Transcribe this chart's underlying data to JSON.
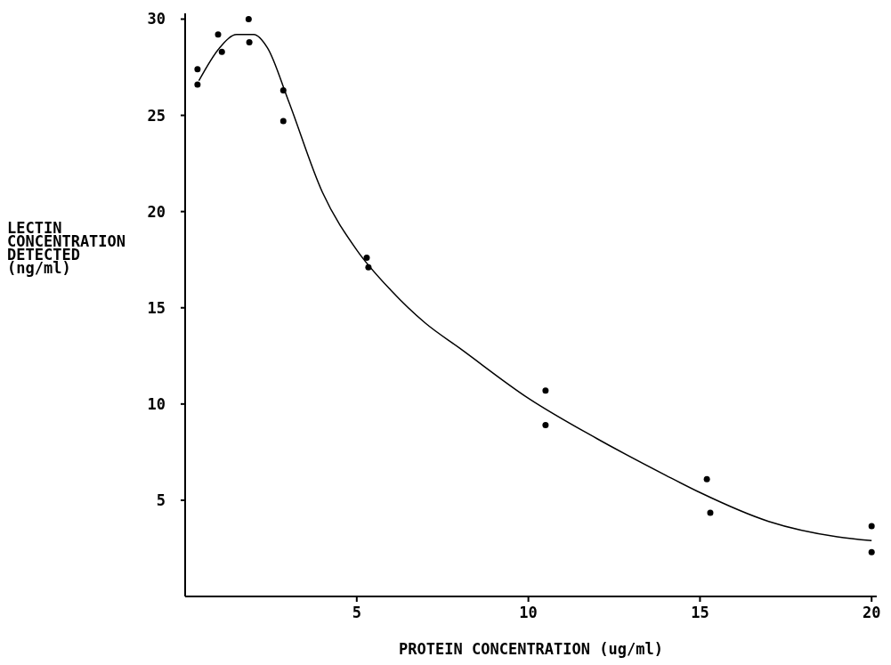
{
  "chart_data": {
    "type": "line",
    "xlabel": "PROTEIN CONCENTRATION (ug/ml)",
    "ylabel": "LECTIN\nCONCENTRATION\nDETECTED\n(ng/ml)",
    "xlim": [
      0,
      20.15
    ],
    "ylim": [
      0,
      30.3
    ],
    "xticks": [
      5,
      10,
      15,
      20
    ],
    "yticks": [
      5,
      10,
      15,
      20,
      25,
      30
    ],
    "series": [
      {
        "type": "scatter",
        "marker": "circle",
        "color": "#000000",
        "x": [
          0.36,
          0.36,
          0.96,
          1.07,
          1.85,
          1.87,
          2.86,
          2.86,
          5.29,
          5.34,
          10.5,
          10.5,
          15.2,
          15.3,
          20.0,
          20.0
        ],
        "values": [
          27.4,
          26.6,
          29.2,
          28.3,
          30.0,
          28.8,
          26.3,
          24.7,
          17.6,
          17.1,
          10.7,
          8.9,
          6.1,
          4.35,
          3.66,
          2.3
        ]
      },
      {
        "color": "#000000",
        "x": [
          0.4,
          1,
          1.5,
          2,
          2.4,
          3,
          4,
          5,
          6,
          7,
          8,
          10,
          12,
          14,
          15,
          17,
          19,
          20
        ],
        "values": [
          26.8,
          28.5,
          29.2,
          29.2,
          28.5,
          25.8,
          21,
          18,
          15.9,
          14.2,
          12.9,
          10.3,
          8.2,
          6.3,
          5.4,
          3.9,
          3.1,
          2.9
        ]
      }
    ]
  }
}
